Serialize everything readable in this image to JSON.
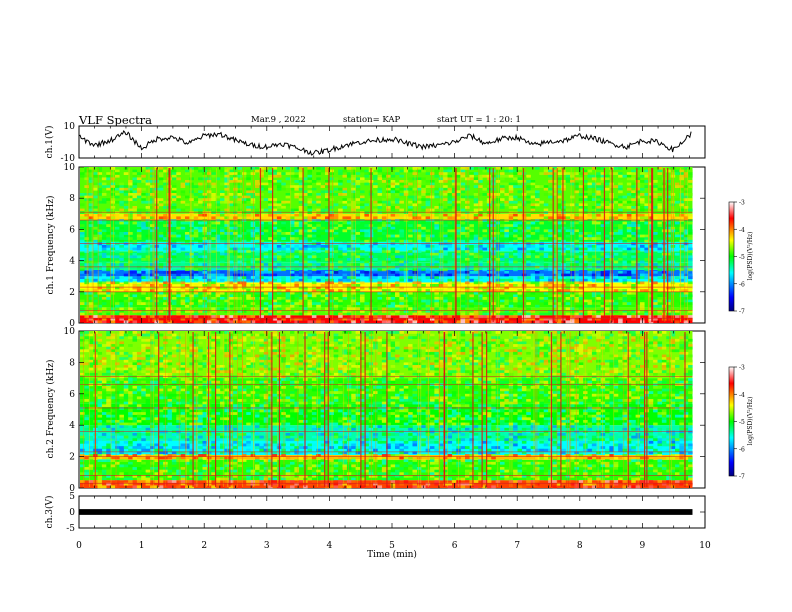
{
  "header": {
    "title": "VLF Spectra",
    "date": "Mar.9 , 2022",
    "station": "station= KAP",
    "start_ut": "start UT = 1 : 20: 1"
  },
  "chart_data": [
    {
      "type": "line",
      "panel": "ch1-waveform",
      "ylabel": "ch.1(V)",
      "ylim": [
        -10,
        10
      ],
      "yticks": [
        "10",
        "-10"
      ],
      "x": [
        0,
        0.25,
        0.5,
        0.75,
        1,
        1.25,
        1.5,
        1.75,
        2,
        2.25,
        2.5,
        2.75,
        3,
        3.25,
        3.5,
        3.75,
        4,
        4.25,
        4.5,
        4.75,
        5,
        5.25,
        5.5,
        5.75,
        6,
        6.25,
        6.5,
        6.75,
        7,
        7.25,
        7.5,
        7.75,
        8,
        8.25,
        8.5,
        8.75,
        9,
        9.25,
        9.5,
        9.8
      ],
      "values": [
        3,
        -2,
        1,
        6,
        -4,
        2,
        3,
        -1,
        4,
        5,
        1,
        -2,
        -3,
        -1,
        -4,
        -7,
        -5,
        -2,
        0,
        1,
        2,
        -1,
        -3,
        -2,
        0,
        4,
        -1,
        2,
        3,
        -2,
        0,
        1,
        4,
        2,
        -1,
        -3,
        1,
        0,
        -5,
        6
      ]
    },
    {
      "type": "heatmap",
      "panel": "ch1-spectrogram",
      "ylabel": "ch.1 Frequency (kHz)",
      "ylim": [
        0,
        10
      ],
      "yticks": [
        "0",
        "2",
        "4",
        "6",
        "8",
        "10"
      ],
      "colorbar": {
        "label": "log(PSD)(V²/Hz)",
        "range": [
          -7,
          -3
        ],
        "ticks": [
          "-3",
          "-4",
          "-5",
          "-6",
          "-7"
        ]
      },
      "bands": [
        {
          "f": [
            0.0,
            0.5
          ],
          "level": -3.6
        },
        {
          "f": [
            0.5,
            1.0
          ],
          "level": -4.8
        },
        {
          "f": [
            1.0,
            2.0
          ],
          "level": -4.9
        },
        {
          "f": [
            2.0,
            2.6
          ],
          "level": -4.4
        },
        {
          "f": [
            2.6,
            3.0
          ],
          "level": -5.6
        },
        {
          "f": [
            3.0,
            3.4
          ],
          "level": -6.1
        },
        {
          "f": [
            3.4,
            3.9
          ],
          "level": -5.3
        },
        {
          "f": [
            3.9,
            4.6
          ],
          "level": -5.2
        },
        {
          "f": [
            4.6,
            5.2
          ],
          "level": -5.6
        },
        {
          "f": [
            5.2,
            6.6
          ],
          "level": -5.1
        },
        {
          "f": [
            6.6,
            7.0
          ],
          "level": -4.3
        },
        {
          "f": [
            7.0,
            10.0
          ],
          "level": -4.8
        }
      ]
    },
    {
      "type": "heatmap",
      "panel": "ch2-spectrogram",
      "ylabel": "ch.2 Frequency (kHz)",
      "ylim": [
        0,
        10
      ],
      "yticks": [
        "0",
        "2",
        "4",
        "6",
        "8",
        "10"
      ],
      "colorbar": {
        "label": "log(PSD)(V²/Hz)",
        "range": [
          -7,
          -3
        ],
        "ticks": [
          "-3",
          "-4",
          "-5",
          "-6",
          "-7"
        ]
      },
      "bands": [
        {
          "f": [
            0.0,
            0.5
          ],
          "level": -3.8
        },
        {
          "f": [
            0.5,
            1.8
          ],
          "level": -4.9
        },
        {
          "f": [
            1.8,
            2.1
          ],
          "level": -4.2
        },
        {
          "f": [
            2.1,
            3.0
          ],
          "level": -5.6
        },
        {
          "f": [
            3.0,
            4.0
          ],
          "level": -5.4
        },
        {
          "f": [
            4.0,
            5.4
          ],
          "level": -5.0
        },
        {
          "f": [
            5.4,
            7.0
          ],
          "level": -4.9
        },
        {
          "f": [
            7.0,
            10.0
          ],
          "level": -4.7
        }
      ]
    },
    {
      "type": "line",
      "panel": "ch3-waveform",
      "ylabel": "ch.3(V)",
      "ylim": [
        -5,
        5
      ],
      "yticks": [
        "5",
        "0",
        "-5"
      ],
      "x": [
        0,
        9.8
      ],
      "values": [
        0,
        0
      ]
    }
  ],
  "x_axis": {
    "label": "Time (min)",
    "xlim": [
      0,
      10
    ],
    "ticks": [
      "0",
      "1",
      "2",
      "3",
      "4",
      "5",
      "6",
      "7",
      "8",
      "9",
      "10"
    ]
  },
  "colors": {
    "axis": "#000000",
    "background": "#ffffff"
  }
}
